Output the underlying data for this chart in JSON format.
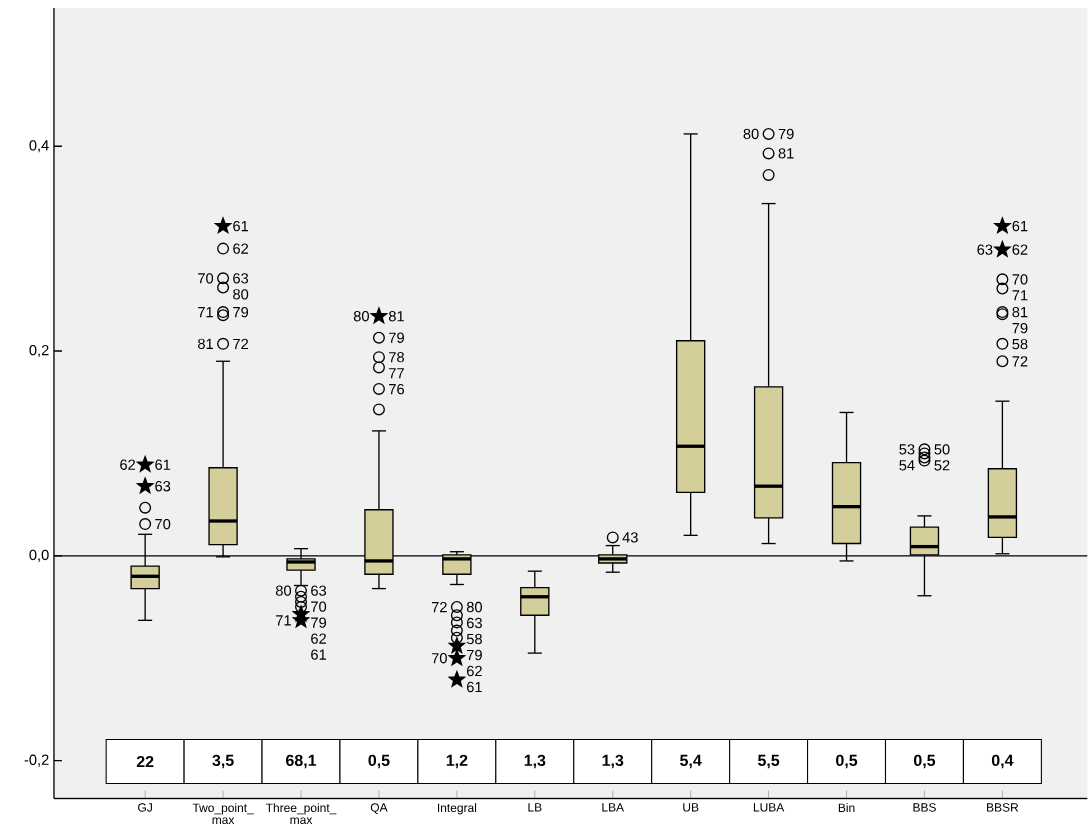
{
  "chart_data": {
    "type": "box",
    "categories": [
      "GJ",
      "Two_point_ max",
      "Three_point_ max",
      "QA",
      "Integral",
      "LB",
      "LBA",
      "UB",
      "LUBA",
      "Bin",
      "BBS",
      "BBSR"
    ],
    "ylim": [
      -0.237,
      0.535
    ],
    "yticks": [
      {
        "value": -0.2,
        "label": "-0,2"
      },
      {
        "value": 0,
        "label": "0,0"
      },
      {
        "value": 0.2,
        "label": "0,2"
      },
      {
        "value": 0.4,
        "label": "0,4"
      }
    ],
    "grid": false,
    "series": [
      {
        "type": "box",
        "color": "#d4cf9a",
        "boxes": [
          {
            "low": -0.063,
            "q1": -0.032,
            "median": -0.02,
            "q3": -0.01,
            "high": 0.021
          },
          {
            "low": -0.001,
            "q1": 0.011,
            "median": 0.034,
            "q3": 0.086,
            "high": 0.19
          },
          {
            "low": -0.029,
            "q1": -0.014,
            "median": -0.006,
            "q3": -0.003,
            "high": 0.007
          },
          {
            "low": -0.032,
            "q1": -0.018,
            "median": -0.005,
            "q3": 0.045,
            "high": 0.122
          },
          {
            "low": -0.028,
            "q1": -0.018,
            "median": -0.003,
            "q3": 0.001,
            "high": 0.004
          },
          {
            "low": -0.095,
            "q1": -0.058,
            "median": -0.04,
            "q3": -0.031,
            "high": -0.015
          },
          {
            "low": -0.016,
            "q1": -0.007,
            "median": -0.003,
            "q3": 0.001,
            "high": 0.01
          },
          {
            "low": 0.02,
            "q1": 0.062,
            "median": 0.107,
            "q3": 0.21,
            "high": 0.412
          },
          {
            "low": 0.012,
            "q1": 0.037,
            "median": 0.068,
            "q3": 0.165,
            "high": 0.344
          },
          {
            "low": -0.005,
            "q1": 0.012,
            "median": 0.048,
            "q3": 0.091,
            "high": 0.14
          },
          {
            "low": -0.039,
            "q1": 0.001,
            "median": 0.009,
            "q3": 0.028,
            "high": 0.039
          },
          {
            "low": 0.002,
            "q1": 0.018,
            "median": 0.038,
            "q3": 0.085,
            "high": 0.151
          }
        ]
      },
      {
        "type": "scatter",
        "color": "#000000",
        "marker": "circle",
        "x": [
          "GJ",
          "GJ",
          "Two_point_ max",
          "Two_point_ max",
          "Two_point_ max",
          "Two_point_ max",
          "Two_point_ max",
          "Two_point_ max",
          "Three_point_ max",
          "Three_point_ max",
          "Three_point_ max",
          "Three_point_ max",
          "QA",
          "QA",
          "QA",
          "QA",
          "QA",
          "Integral",
          "Integral",
          "Integral",
          "Integral",
          "Integral",
          "LBA",
          "LUBA",
          "LUBA",
          "LUBA",
          "BBS",
          "BBS",
          "BBS",
          "BBS",
          "BBSR",
          "BBSR",
          "BBSR",
          "BBSR",
          "BBSR",
          "BBSR"
        ],
        "values": [
          0.047,
          0.031,
          0.3,
          0.271,
          0.262,
          0.238,
          0.235,
          0.207,
          -0.034,
          -0.04,
          -0.045,
          -0.05,
          0.213,
          0.194,
          0.184,
          0.163,
          0.143,
          -0.05,
          -0.058,
          -0.065,
          -0.073,
          -0.08,
          0.018,
          0.412,
          0.393,
          0.372,
          0.104,
          0.1,
          0.096,
          0.093,
          0.27,
          0.261,
          0.238,
          0.236,
          0.207,
          0.19
        ]
      },
      {
        "type": "scatter",
        "color": "#000000",
        "marker": "star",
        "x": [
          "GJ",
          "GJ",
          "Two_point_ max",
          "Three_point_ max",
          "Three_point_ max",
          "QA",
          "Integral",
          "Integral",
          "Integral",
          "BBSR",
          "BBSR"
        ],
        "values": [
          0.089,
          0.068,
          0.322,
          -0.057,
          -0.063,
          0.234,
          -0.088,
          -0.1,
          -0.121,
          0.322,
          0.299
        ]
      }
    ],
    "ref_lines": [
      {
        "axis": "y",
        "value": 0
      }
    ],
    "annotations": [
      {
        "text": "61",
        "x": "GJ",
        "y": 0.089
      },
      {
        "text": "62",
        "x": "GJ",
        "y": 0.089
      },
      {
        "text": "63",
        "x": "GJ",
        "y": 0.068
      },
      {
        "text": "70",
        "x": "GJ",
        "y": 0.031
      },
      {
        "text": "61",
        "x": "Two_point_ max",
        "y": 0.322
      },
      {
        "text": "62",
        "x": "Two_point_ max",
        "y": 0.3
      },
      {
        "text": "63",
        "x": "Two_point_ max",
        "y": 0.271
      },
      {
        "text": "70",
        "x": "Two_point_ max",
        "y": 0.271
      },
      {
        "text": "79",
        "x": "Two_point_ max",
        "y": 0.238
      },
      {
        "text": "80",
        "x": "Two_point_ max",
        "y": 0.262
      },
      {
        "text": "71",
        "x": "Two_point_ max",
        "y": 0.238
      },
      {
        "text": "72",
        "x": "Two_point_ max",
        "y": 0.207
      },
      {
        "text": "81",
        "x": "Two_point_ max",
        "y": 0.207
      },
      {
        "text": "63",
        "x": "Three_point_ max",
        "y": -0.034
      },
      {
        "text": "80",
        "x": "Three_point_ max",
        "y": -0.034
      },
      {
        "text": "70",
        "x": "Three_point_ max",
        "y": -0.04
      },
      {
        "text": "79",
        "x": "Three_point_ max",
        "y": -0.045
      },
      {
        "text": "62",
        "x": "Three_point_ max",
        "y": -0.057
      },
      {
        "text": "61",
        "x": "Three_point_ max",
        "y": -0.063
      },
      {
        "text": "71",
        "x": "Three_point_ max",
        "y": -0.063
      },
      {
        "text": "81",
        "x": "QA",
        "y": 0.234
      },
      {
        "text": "80",
        "x": "QA",
        "y": 0.234
      },
      {
        "text": "78",
        "x": "QA",
        "y": 0.194
      },
      {
        "text": "79",
        "x": "QA",
        "y": 0.213
      },
      {
        "text": "76",
        "x": "QA",
        "y": 0.163
      },
      {
        "text": "77",
        "x": "QA",
        "y": 0.184
      },
      {
        "text": "80",
        "x": "Integral",
        "y": -0.05
      },
      {
        "text": "72",
        "x": "Integral",
        "y": -0.05
      },
      {
        "text": "58",
        "x": "Integral",
        "y": -0.065
      },
      {
        "text": "63",
        "x": "Integral",
        "y": -0.058
      },
      {
        "text": "62",
        "x": "Integral",
        "y": -0.1
      },
      {
        "text": "79",
        "x": "Integral",
        "y": -0.088
      },
      {
        "text": "61",
        "x": "Integral",
        "y": -0.121
      },
      {
        "text": "70",
        "x": "Integral",
        "y": -0.1
      },
      {
        "text": "43",
        "x": "LBA",
        "y": 0.018
      },
      {
        "text": "79",
        "x": "LUBA",
        "y": 0.412
      },
      {
        "text": "80",
        "x": "LUBA",
        "y": 0.412
      },
      {
        "text": "81",
        "x": "LUBA",
        "y": 0.393
      },
      {
        "text": "50",
        "x": "BBS",
        "y": 0.104
      },
      {
        "text": "53",
        "x": "BBS",
        "y": 0.104
      },
      {
        "text": "52",
        "x": "BBS",
        "y": 0.093
      },
      {
        "text": "54",
        "x": "BBS",
        "y": 0.093
      },
      {
        "text": "61",
        "x": "BBSR",
        "y": 0.322
      },
      {
        "text": "62",
        "x": "BBSR",
        "y": 0.299
      },
      {
        "text": "70",
        "x": "BBSR",
        "y": 0.27
      },
      {
        "text": "63",
        "x": "BBSR",
        "y": 0.299
      },
      {
        "text": "71",
        "x": "BBSR",
        "y": 0.261
      },
      {
        "text": "81",
        "x": "BBSR",
        "y": 0.238
      },
      {
        "text": "79",
        "x": "BBSR",
        "y": 0.236
      },
      {
        "text": "58",
        "x": "BBSR",
        "y": 0.207
      },
      {
        "text": "72",
        "x": "BBSR",
        "y": 0.19
      },
      "22",
      "3,5",
      "68,1",
      "0,5",
      "1,2",
      "1,3",
      "1,3",
      "5,4",
      "5,5",
      "0,5",
      "0,5",
      "0,4"
    ]
  }
}
